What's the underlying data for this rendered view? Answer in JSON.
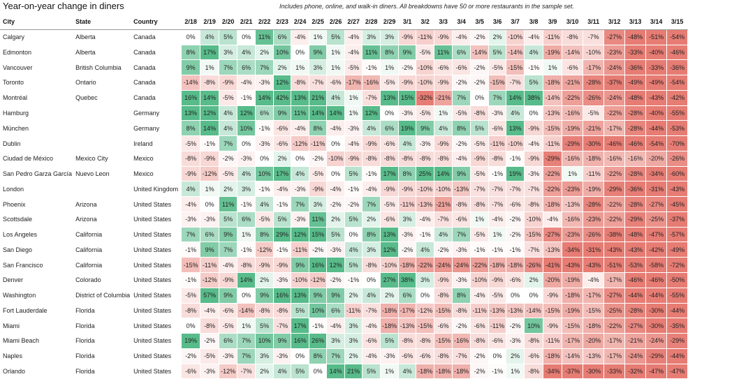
{
  "title": "Year-on-year change in diners",
  "subtitle": "Includes phone, online, and walk-in diners. All breakdowns have 50 or more restaurants in the sample set.",
  "columns": {
    "city": "City",
    "state": "State",
    "country": "Country",
    "dates": [
      "2/18",
      "2/19",
      "2/20",
      "2/21",
      "2/22",
      "2/23",
      "2/24",
      "2/25",
      "2/26",
      "2/27",
      "2/28",
      "2/29",
      "3/1",
      "3/2",
      "3/3",
      "3/4",
      "3/5",
      "3/6",
      "3/7",
      "3/8",
      "3/9",
      "3/10",
      "3/11",
      "3/12",
      "3/13",
      "3/14",
      "3/15"
    ]
  },
  "colors": {
    "positive": "#57bb8a",
    "negative": "#e67c73",
    "neutral": "#ffffff"
  },
  "rows": [
    {
      "city": "Calgary",
      "state": "Alberta",
      "country": "Canada",
      "values": [
        0,
        4,
        5,
        0,
        11,
        6,
        -4,
        1,
        5,
        -4,
        3,
        3,
        -9,
        -11,
        -9,
        -4,
        -2,
        2,
        -10,
        -4,
        -11,
        -8,
        -7,
        -27,
        -48,
        -51,
        -54
      ]
    },
    {
      "city": "Edmonton",
      "state": "Alberta",
      "country": "Canada",
      "values": [
        8,
        17,
        3,
        4,
        2,
        10,
        0,
        9,
        1,
        -4,
        11,
        8,
        9,
        -5,
        11,
        6,
        -14,
        5,
        -14,
        4,
        -19,
        -14,
        -10,
        -23,
        -33,
        -40,
        -46
      ]
    },
    {
      "city": "Vancouver",
      "state": "British Columbia",
      "country": "Canada",
      "values": [
        9,
        1,
        7,
        6,
        7,
        2,
        1,
        3,
        1,
        -5,
        -1,
        1,
        -2,
        -10,
        -6,
        -6,
        -2,
        -5,
        -15,
        -1,
        1,
        -6,
        -17,
        -24,
        -36,
        -33,
        -36
      ]
    },
    {
      "city": "Toronto",
      "state": "Ontario",
      "country": "Canada",
      "values": [
        -14,
        -8,
        -9,
        -4,
        -3,
        12,
        -8,
        -7,
        -6,
        -17,
        -16,
        -5,
        -9,
        -10,
        -9,
        -2,
        -2,
        -15,
        -7,
        5,
        -18,
        -21,
        -28,
        -37,
        -49,
        -49,
        -54
      ]
    },
    {
      "city": "Montréal",
      "state": "Quebec",
      "country": "Canada",
      "values": [
        16,
        14,
        -5,
        -1,
        14,
        42,
        13,
        21,
        4,
        1,
        -7,
        13,
        15,
        -32,
        -21,
        7,
        0,
        7,
        14,
        38,
        -14,
        -22,
        -26,
        -24,
        -48,
        -43,
        -42
      ]
    },
    {
      "city": "Hamburg",
      "state": "",
      "country": "Germany",
      "values": [
        13,
        12,
        4,
        12,
        6,
        9,
        11,
        14,
        14,
        1,
        12,
        0,
        -3,
        -5,
        1,
        -5,
        -8,
        -3,
        4,
        0,
        -13,
        -16,
        -5,
        -22,
        -28,
        -40,
        -55
      ]
    },
    {
      "city": "München",
      "state": "",
      "country": "Germany",
      "values": [
        8,
        14,
        4,
        10,
        -1,
        -6,
        -4,
        8,
        -4,
        -3,
        4,
        6,
        19,
        9,
        4,
        8,
        5,
        -6,
        13,
        -9,
        -15,
        -19,
        -21,
        -17,
        -28,
        -44,
        -53
      ]
    },
    {
      "city": "Dublin",
      "state": "",
      "country": "Ireland",
      "values": [
        -5,
        -1,
        7,
        0,
        -3,
        -6,
        -12,
        -11,
        0,
        -4,
        -9,
        -6,
        4,
        -3,
        -9,
        -2,
        -5,
        -11,
        -10,
        -4,
        -11,
        -29,
        -30,
        -46,
        -46,
        -54,
        -70
      ]
    },
    {
      "city": "Ciudad de México",
      "state": "Mexico City",
      "country": "Mexico",
      "values": [
        -8,
        -9,
        -2,
        -3,
        0,
        2,
        0,
        -2,
        -10,
        -9,
        -8,
        -8,
        -8,
        -8,
        -8,
        -4,
        -9,
        -8,
        -1,
        -9,
        -29,
        -16,
        -18,
        -16,
        -16,
        -20,
        -26
      ]
    },
    {
      "city": "San Pedro Garza García",
      "state": "Nuevo Leon",
      "country": "Mexico",
      "values": [
        -9,
        -12,
        -5,
        4,
        10,
        17,
        4,
        -5,
        0,
        5,
        -1,
        17,
        8,
        25,
        14,
        9,
        -5,
        -1,
        19,
        -3,
        -22,
        1,
        -11,
        -22,
        -28,
        -34,
        -60
      ]
    },
    {
      "city": "London",
      "state": "",
      "country": "United Kingdom",
      "values": [
        4,
        1,
        2,
        3,
        -1,
        -4,
        -3,
        -9,
        -4,
        -1,
        -4,
        -9,
        -9,
        -10,
        -10,
        -13,
        -7,
        -7,
        -7,
        -7,
        -22,
        -23,
        -19,
        -29,
        -36,
        -31,
        -43
      ]
    },
    {
      "city": "Phoenix",
      "state": "Arizona",
      "country": "United States",
      "values": [
        -4,
        0,
        11,
        -1,
        4,
        -1,
        7,
        3,
        -2,
        -2,
        7,
        -5,
        -11,
        -13,
        -21,
        -8,
        -8,
        -7,
        -6,
        -8,
        -18,
        -13,
        -28,
        -22,
        -28,
        -27,
        -45
      ]
    },
    {
      "city": "Scottsdale",
      "state": "Arizona",
      "country": "United States",
      "values": [
        -3,
        -3,
        5,
        6,
        -5,
        5,
        -3,
        11,
        2,
        5,
        2,
        -6,
        3,
        -4,
        -7,
        -6,
        1,
        -4,
        -2,
        -10,
        -4,
        -16,
        -23,
        -22,
        -29,
        -25,
        -37
      ]
    },
    {
      "city": "Los Angeles",
      "state": "California",
      "country": "United States",
      "values": [
        7,
        6,
        9,
        1,
        8,
        29,
        12,
        15,
        5,
        0,
        8,
        13,
        -3,
        -1,
        4,
        7,
        -5,
        1,
        -2,
        -15,
        -27,
        -23,
        -26,
        -38,
        -48,
        -47,
        -57
      ]
    },
    {
      "city": "San Diego",
      "state": "California",
      "country": "United States",
      "values": [
        -1,
        9,
        7,
        -1,
        -12,
        -1,
        -11,
        -2,
        -3,
        4,
        3,
        12,
        -2,
        4,
        -2,
        -3,
        -1,
        -1,
        -1,
        -7,
        -13,
        -34,
        -31,
        -43,
        -43,
        -42,
        -49
      ]
    },
    {
      "city": "San Francisco",
      "state": "California",
      "country": "United States",
      "values": [
        -15,
        -11,
        -4,
        -8,
        -9,
        -9,
        9,
        16,
        12,
        5,
        -8,
        -10,
        -18,
        -22,
        -24,
        -24,
        -22,
        -18,
        -18,
        -26,
        -41,
        -43,
        -43,
        -51,
        -53,
        -58,
        -72
      ]
    },
    {
      "city": "Denver",
      "state": "Colorado",
      "country": "United States",
      "values": [
        -1,
        -12,
        -9,
        14,
        2,
        -3,
        -10,
        -12,
        -2,
        -1,
        0,
        27,
        38,
        3,
        -9,
        -3,
        -10,
        -9,
        -6,
        2,
        -20,
        -19,
        -4,
        -17,
        -46,
        -46,
        -50
      ]
    },
    {
      "city": "Washington",
      "state": "District of Columbia",
      "country": "United States",
      "values": [
        -5,
        57,
        9,
        0,
        9,
        16,
        13,
        9,
        9,
        2,
        4,
        2,
        6,
        0,
        -8,
        8,
        -4,
        -5,
        0,
        0,
        -9,
        -18,
        -17,
        -27,
        -44,
        -44,
        -55
      ]
    },
    {
      "city": "Fort Lauderdale",
      "state": "Florida",
      "country": "United States",
      "values": [
        -8,
        -4,
        -6,
        -14,
        -8,
        -8,
        5,
        10,
        6,
        -11,
        -7,
        -18,
        -17,
        -12,
        -15,
        -8,
        -11,
        -13,
        -13,
        -14,
        -15,
        -19,
        -15,
        -25,
        -28,
        -30,
        -44
      ]
    },
    {
      "city": "Miami",
      "state": "Florida",
      "country": "United States",
      "values": [
        0,
        -8,
        -5,
        1,
        5,
        -7,
        17,
        -1,
        -4,
        3,
        -4,
        -18,
        -13,
        -15,
        -6,
        -2,
        -6,
        -11,
        -2,
        10,
        -9,
        -15,
        -18,
        -22,
        -27,
        -30,
        -35
      ]
    },
    {
      "city": "Miami Beach",
      "state": "Florida",
      "country": "United States",
      "values": [
        19,
        -2,
        6,
        7,
        10,
        9,
        16,
        26,
        3,
        3,
        -6,
        5,
        -8,
        -8,
        -15,
        -16,
        -8,
        -6,
        -3,
        -8,
        -11,
        -17,
        -20,
        -17,
        -21,
        -24,
        -29
      ]
    },
    {
      "city": "Naples",
      "state": "Florida",
      "country": "United States",
      "values": [
        -2,
        -5,
        -3,
        7,
        3,
        -3,
        0,
        8,
        7,
        2,
        -4,
        -3,
        -6,
        -6,
        -8,
        -7,
        -2,
        0,
        2,
        -6,
        -18,
        -14,
        -13,
        -17,
        -24,
        -29,
        -44
      ]
    },
    {
      "city": "Orlando",
      "state": "Florida",
      "country": "United States",
      "values": [
        -6,
        -3,
        -12,
        -7,
        2,
        4,
        5,
        0,
        14,
        21,
        5,
        1,
        4,
        -18,
        -18,
        -18,
        -2,
        -1,
        1,
        -8,
        -34,
        -37,
        -30,
        -33,
        -32,
        -47,
        -47
      ]
    }
  ]
}
